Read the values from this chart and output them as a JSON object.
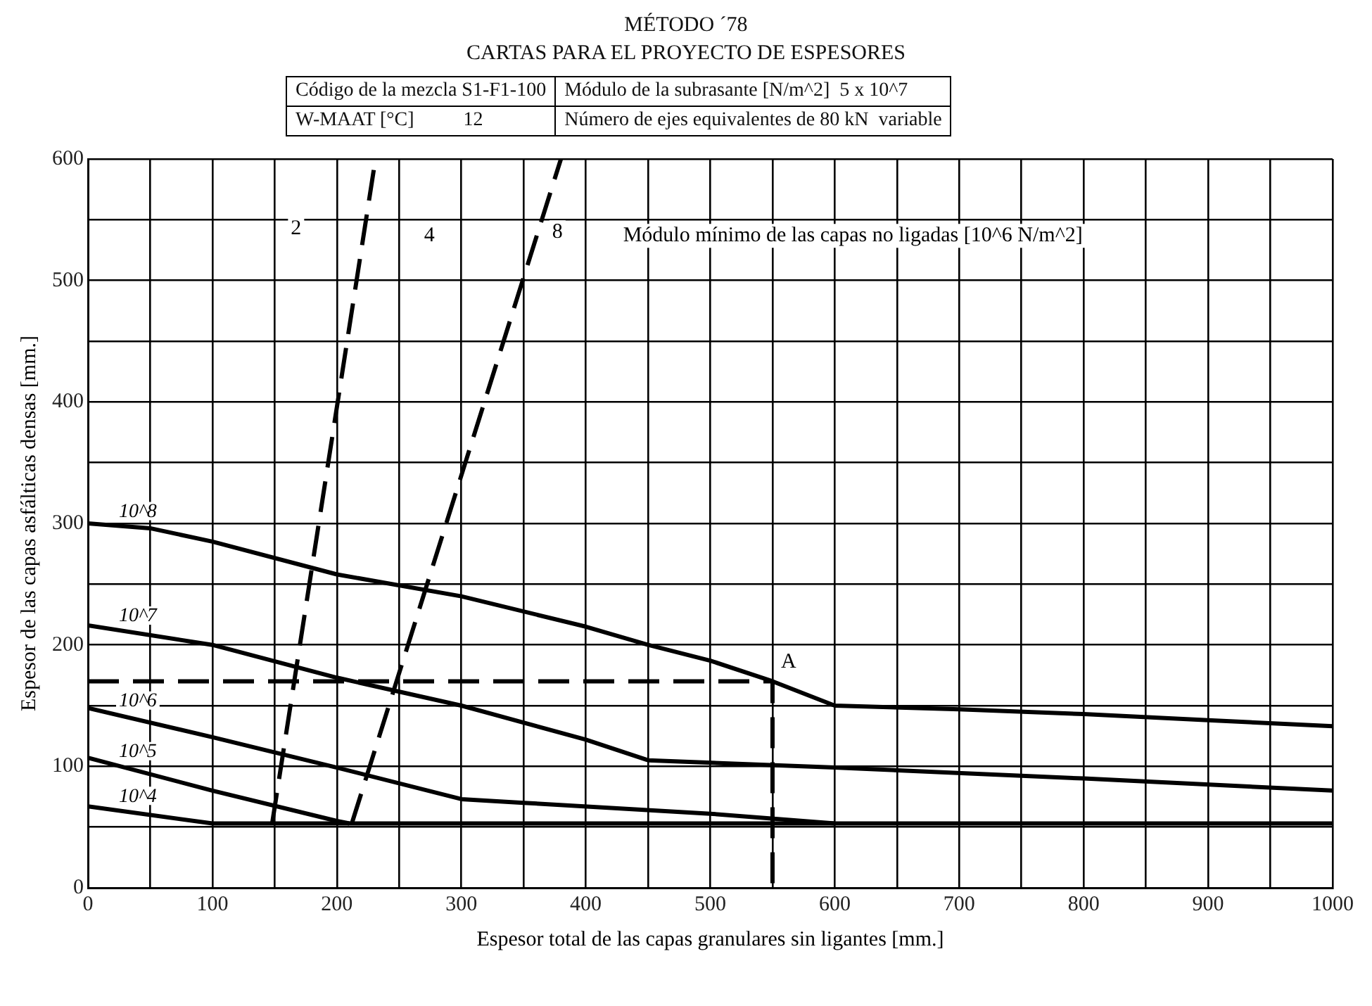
{
  "chart_data": {
    "type": "line",
    "title": "MÉTODO ´78",
    "subtitle": "CARTAS PARA EL PROYECTO DE ESPESORES",
    "xlabel": "Espesor total de las capas granulares sin ligantes [mm.]",
    "ylabel": "Espesor de las capas asfálticas densas [mm.]",
    "xlim": [
      0,
      1000
    ],
    "xticks": [
      0,
      {
        "value": 50,
        "label": null
      },
      100,
      {
        "value": 150,
        "label": null
      },
      200,
      {
        "value": 250,
        "label": null
      },
      300,
      {
        "value": 350,
        "label": null
      },
      400,
      {
        "value": 450,
        "label": null
      },
      500,
      {
        "value": 550,
        "label": null
      },
      600,
      {
        "value": 650,
        "label": null
      },
      700,
      {
        "value": 750,
        "label": null
      },
      800,
      {
        "value": 850,
        "label": null
      },
      900,
      {
        "value": 950,
        "label": null
      },
      1000
    ],
    "ylim": [
      0,
      600
    ],
    "yticks": [
      0,
      {
        "value": 50,
        "label": null
      },
      100,
      {
        "value": 150,
        "label": null
      },
      200,
      {
        "value": 250,
        "label": null
      },
      300,
      {
        "value": 350,
        "label": null
      },
      400,
      {
        "value": 450,
        "label": null
      },
      500,
      {
        "value": 550,
        "label": null
      },
      600
    ],
    "grid": true,
    "legend": false,
    "marker": "none",
    "series": [
      {
        "name": "10^8",
        "color": "#000000",
        "line_style": "solid",
        "x": [
          0,
          50,
          100,
          200,
          300,
          400,
          450,
          500,
          550,
          600,
          700,
          800,
          900,
          1000
        ],
        "values": [
          300,
          296,
          285,
          258,
          240,
          215,
          200,
          187,
          170,
          150,
          147,
          143,
          138,
          133
        ]
      },
      {
        "name": "10^7",
        "color": "#000000",
        "line_style": "solid",
        "x": [
          0,
          100,
          200,
          300,
          400,
          450,
          600,
          800,
          1000
        ],
        "values": [
          216,
          200,
          173,
          150,
          122,
          105,
          99,
          90,
          80
        ]
      },
      {
        "name": "10^6",
        "color": "#000000",
        "line_style": "solid",
        "x": [
          0,
          100,
          200,
          300,
          350,
          500,
          600
        ],
        "values": [
          148,
          124,
          99,
          73,
          70,
          61,
          53
        ]
      },
      {
        "name": "10^5",
        "color": "#000000",
        "line_style": "solid",
        "x": [
          0,
          100,
          200,
          210
        ],
        "values": [
          107,
          80,
          55,
          53
        ]
      },
      {
        "name": "10^4",
        "color": "#000000",
        "line_style": "solid",
        "x": [
          0,
          100,
          1000
        ],
        "values": [
          67,
          53,
          53
        ]
      },
      {
        "color": "#000000",
        "line_style": "dashed",
        "x": [
          148,
          231
        ],
        "values": [
          53,
          600
        ]
      },
      {
        "color": "#000000",
        "line_style": "dashed",
        "x": [
          212,
          380
        ],
        "values": [
          53,
          600
        ]
      },
      {
        "color": "#000000",
        "line_style": "dashed",
        "x": [
          0,
          550,
          550
        ],
        "values": [
          170,
          170,
          0
        ]
      }
    ],
    "annotations": [
      "Código de la mezcla S1-F1-100",
      "Módulo de la subrasante [N/m^2]  5 x 10^7",
      "W-MAAT [°C]          12",
      "Número de ejes equivalentes de 80 kN  variable",
      "2",
      "4",
      "8",
      "Módulo mínimo de las capas no ligadas [10^6 N/m^2]",
      {
        "text": "A",
        "x": 550,
        "y": 170
      }
    ]
  }
}
